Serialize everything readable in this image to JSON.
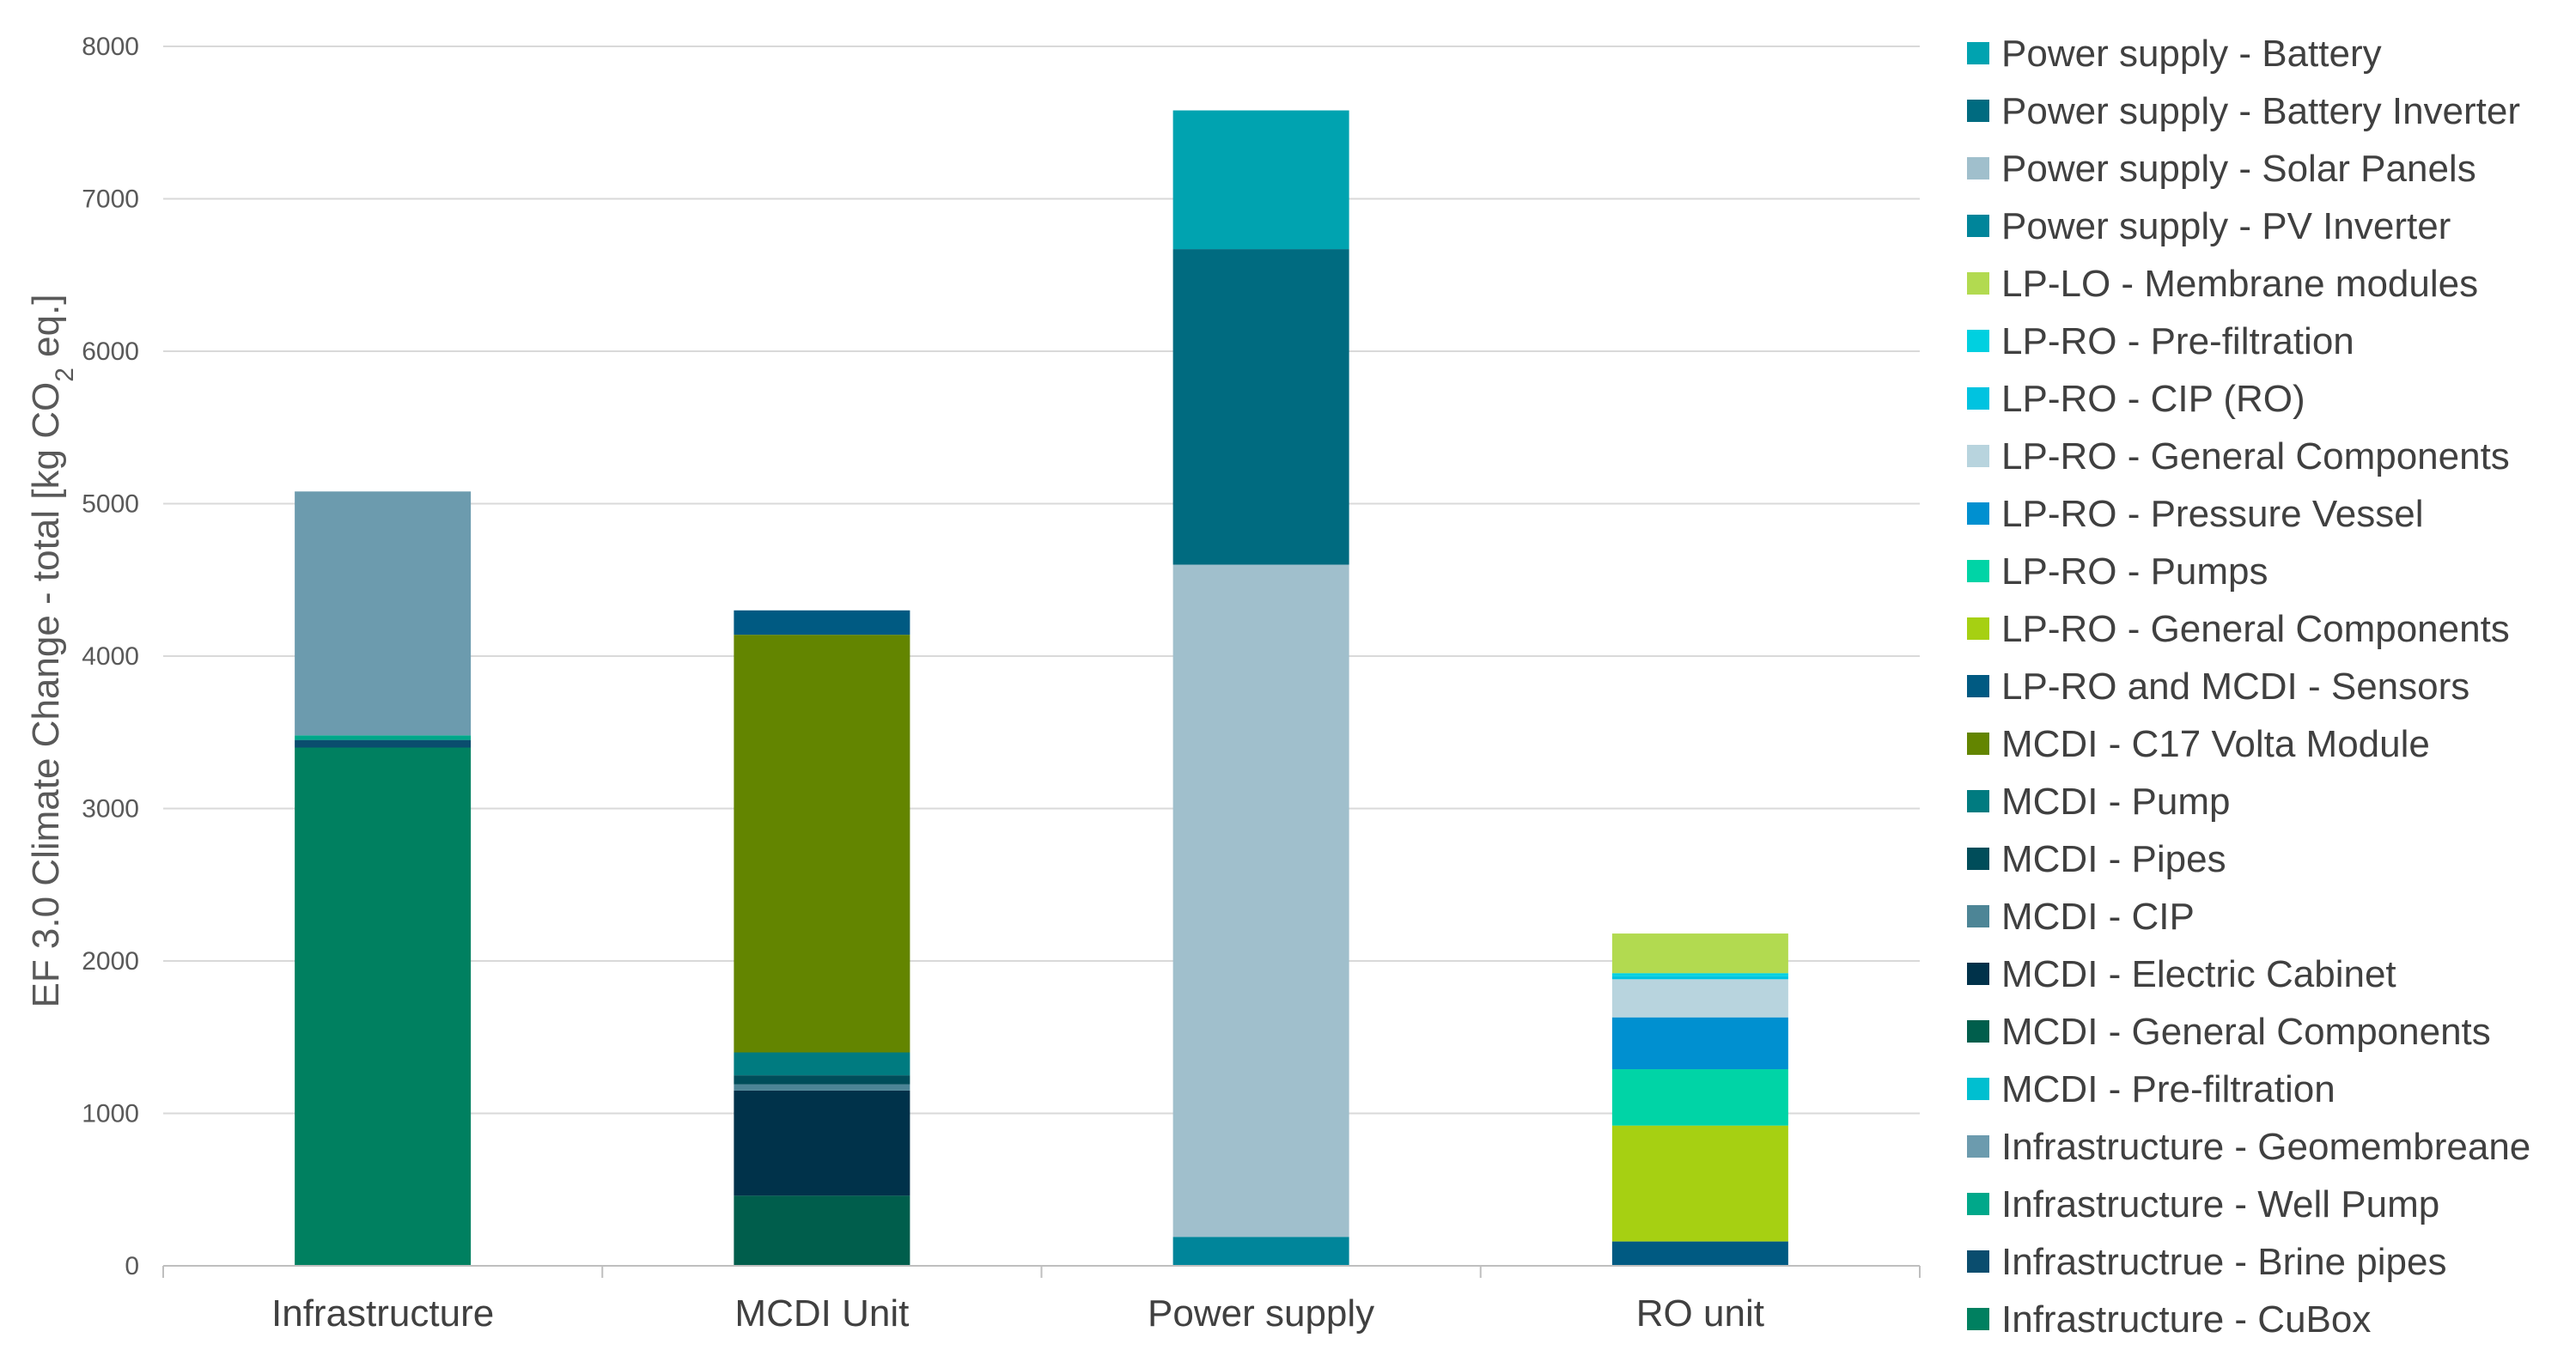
{
  "chart_data": {
    "type": "bar",
    "stacked": true,
    "categories": [
      "Infrastructure",
      "MCDI Unit",
      "Power supply",
      "RO unit"
    ],
    "ylabel": "EF  3.0 Climate Change - total [kg CO",
    "ylabel_sub": "2",
    "ylabel_suffix": " eq.]",
    "ylim": [
      0,
      8000
    ],
    "yticks": [
      0,
      1000,
      2000,
      3000,
      4000,
      5000,
      6000,
      7000,
      8000
    ],
    "grid": true,
    "legend_position": "right",
    "series": [
      {
        "name": "Infrastructure - CuBox",
        "color": "#008060",
        "values": [
          3400,
          0,
          0,
          0
        ]
      },
      {
        "name": "Infrastructrue - Brine  pipes",
        "color": "#0A4D6E",
        "values": [
          50,
          0,
          0,
          0
        ]
      },
      {
        "name": "Infrastructure - Well Pump",
        "color": "#00A88A",
        "values": [
          30,
          0,
          0,
          0
        ]
      },
      {
        "name": "Infrastructure - Geomembreane",
        "color": "#6C9BAE",
        "values": [
          1600,
          0,
          0,
          0
        ]
      },
      {
        "name": "MCDI - Pre-filtration",
        "color": "#00BFD0",
        "values": [
          0,
          0,
          0,
          0
        ]
      },
      {
        "name": "MCDI - General Components",
        "color": "#005E4C",
        "values": [
          0,
          460,
          0,
          0
        ]
      },
      {
        "name": "MCDI - Electric Cabinet",
        "color": "#00324A",
        "values": [
          0,
          690,
          0,
          0
        ]
      },
      {
        "name": "MCDI - CIP",
        "color": "#4D8596",
        "values": [
          0,
          40,
          0,
          0
        ]
      },
      {
        "name": "MCDI -  Pipes",
        "color": "#004D5A",
        "values": [
          0,
          60,
          0,
          0
        ]
      },
      {
        "name": "MCDI -  Pump",
        "color": "#007B80",
        "values": [
          0,
          150,
          0,
          0
        ]
      },
      {
        "name": "MCDI -  C17 Volta Module",
        "color": "#638500",
        "values": [
          0,
          2740,
          0,
          0
        ]
      },
      {
        "name": "LP-RO and MCDI - Sensors",
        "color": "#005A82",
        "values": [
          0,
          160,
          0,
          160
        ]
      },
      {
        "name": "LP-RO - General Components",
        "color": "#A6D012",
        "values": [
          0,
          0,
          0,
          760
        ]
      },
      {
        "name": "LP-RO - Pumps",
        "color": "#00D4A6",
        "values": [
          0,
          0,
          0,
          370
        ]
      },
      {
        "name": "LP-RO - Pressure Vessel",
        "color": "#0090D0",
        "values": [
          0,
          0,
          0,
          340
        ]
      },
      {
        "name": "LP-RO - General Components",
        "color": "#B8D4DE",
        "values": [
          0,
          0,
          0,
          250
        ]
      },
      {
        "name": "LP-RO - CIP (RO)",
        "color": "#00C3E0",
        "values": [
          0,
          0,
          0,
          20
        ]
      },
      {
        "name": "LP-RO -  Pre-filtration",
        "color": "#00D0E0",
        "values": [
          0,
          0,
          0,
          20
        ]
      },
      {
        "name": "LP-LO - Membrane modules",
        "color": "#B2DA50",
        "values": [
          0,
          0,
          0,
          260
        ]
      },
      {
        "name": "Power supply - PV Inverter",
        "color": "#00859A",
        "values": [
          0,
          0,
          190,
          0
        ]
      },
      {
        "name": "Power supply - Solar Panels",
        "color": "#A0BFCC",
        "values": [
          0,
          0,
          4410,
          0
        ]
      },
      {
        "name": "Power supply - Battery Inverter",
        "color": "#006B80",
        "values": [
          0,
          0,
          2070,
          0
        ]
      },
      {
        "name": "Power supply - Battery",
        "color": "#00A3B0",
        "values": [
          0,
          0,
          910,
          0
        ]
      }
    ]
  }
}
